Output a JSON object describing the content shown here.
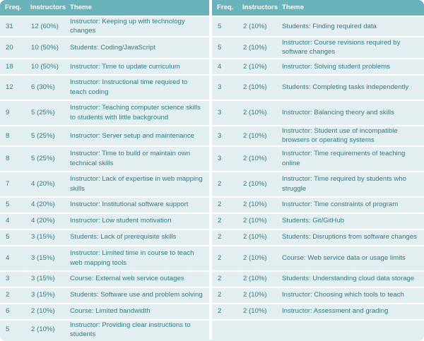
{
  "headers": {
    "freq": "Freq.",
    "instructors": "Instructors",
    "theme": "Theme"
  },
  "left_rows": [
    {
      "freq": "31",
      "instructors": "12 (60%)",
      "theme": "Instructor: Keeping up with technology changes"
    },
    {
      "freq": "20",
      "instructors": "10 (50%)",
      "theme": "Students: Coding/JavaScript"
    },
    {
      "freq": "18",
      "instructors": "10 (50%)",
      "theme": "Instructor: Time to update curriculum"
    },
    {
      "freq": "12",
      "instructors": "6 (30%)",
      "theme": "Instructor: Instructional time required to teach coding"
    },
    {
      "freq": "9",
      "instructors": "5 (25%)",
      "theme": "Instructor: Teaching computer science skills to students with little background"
    },
    {
      "freq": "8",
      "instructors": "5 (25%)",
      "theme": "Instructor: Server setup and maintenance"
    },
    {
      "freq": "8",
      "instructors": "5 (25%)",
      "theme": "Instructor: Time to build or maintain own technical skills"
    },
    {
      "freq": "7",
      "instructors": "4 (20%)",
      "theme": "Instructor: Lack of expertise in web mapping skills"
    },
    {
      "freq": "5",
      "instructors": "4 (20%)",
      "theme": "Instructor: Institutional software support"
    },
    {
      "freq": "4",
      "instructors": "4 (20%)",
      "theme": "Instructor: Low student motivation"
    },
    {
      "freq": "5",
      "instructors": "3 (15%)",
      "theme": "Students: Lack of prerequisite skills"
    },
    {
      "freq": "4",
      "instructors": "3 (15%)",
      "theme": "Instructor: Limited time in course to teach web mapping tools"
    },
    {
      "freq": "3",
      "instructors": "3 (15%)",
      "theme": "Course: External web service outages"
    },
    {
      "freq": "2",
      "instructors": "3 (15%)",
      "theme": "Students: Software use and problem solving"
    },
    {
      "freq": "6",
      "instructors": "2 (10%)",
      "theme": "Course: Limited bandwidth"
    },
    {
      "freq": "5",
      "instructors": "2 (10%)",
      "theme": "Instructor: Providing clear instructions to students"
    }
  ],
  "right_rows": [
    {
      "freq": "5",
      "instructors": "2 (10%)",
      "theme": "Students: Finding required data"
    },
    {
      "freq": "5",
      "instructors": "2 (10%)",
      "theme": "Instructor: Course revisions required by software changes"
    },
    {
      "freq": "4",
      "instructors": "2 (10%)",
      "theme": "Instructor: Solving student problems"
    },
    {
      "freq": "3",
      "instructors": "2 (10%)",
      "theme": "Students: Completing tasks independently"
    },
    {
      "freq": "3",
      "instructors": "2 (10%)",
      "theme": "Instructor: Balancing theory and skills"
    },
    {
      "freq": "3",
      "instructors": "2 (10%)",
      "theme": "Instructor: Student use of incompatible browsers or operating systems"
    },
    {
      "freq": "3",
      "instructors": "2 (10%)",
      "theme": "Instructor: Time requirements of teaching online"
    },
    {
      "freq": "2",
      "instructors": "2 (10%)",
      "theme": "Instructor: Time required by students who struggle"
    },
    {
      "freq": "2",
      "instructors": "2 (10%)",
      "theme": "Instructor: Time constraints of program"
    },
    {
      "freq": "2",
      "instructors": "2 (10%)",
      "theme": "Students: Git/GitHub"
    },
    {
      "freq": "2",
      "instructors": "2 (10%)",
      "theme": "Students: Disruptions from software changes"
    },
    {
      "freq": "2",
      "instructors": "2 (10%)",
      "theme": "Course: Web service data or usage limits"
    },
    {
      "freq": "2",
      "instructors": "2 (10%)",
      "theme": "Students: Understanding cloud data storage"
    },
    {
      "freq": "2",
      "instructors": "2 (10%)",
      "theme": "Instructor: Choosing which tools to teach"
    },
    {
      "freq": "2",
      "instructors": "2 (10%)",
      "theme": "Instructor: Assessment and grading"
    }
  ],
  "colors": {
    "header_bg": "#6ab3bb",
    "cell_bg": "#e3eef0",
    "text": "#2f7e85",
    "divider": "#ffffff"
  }
}
